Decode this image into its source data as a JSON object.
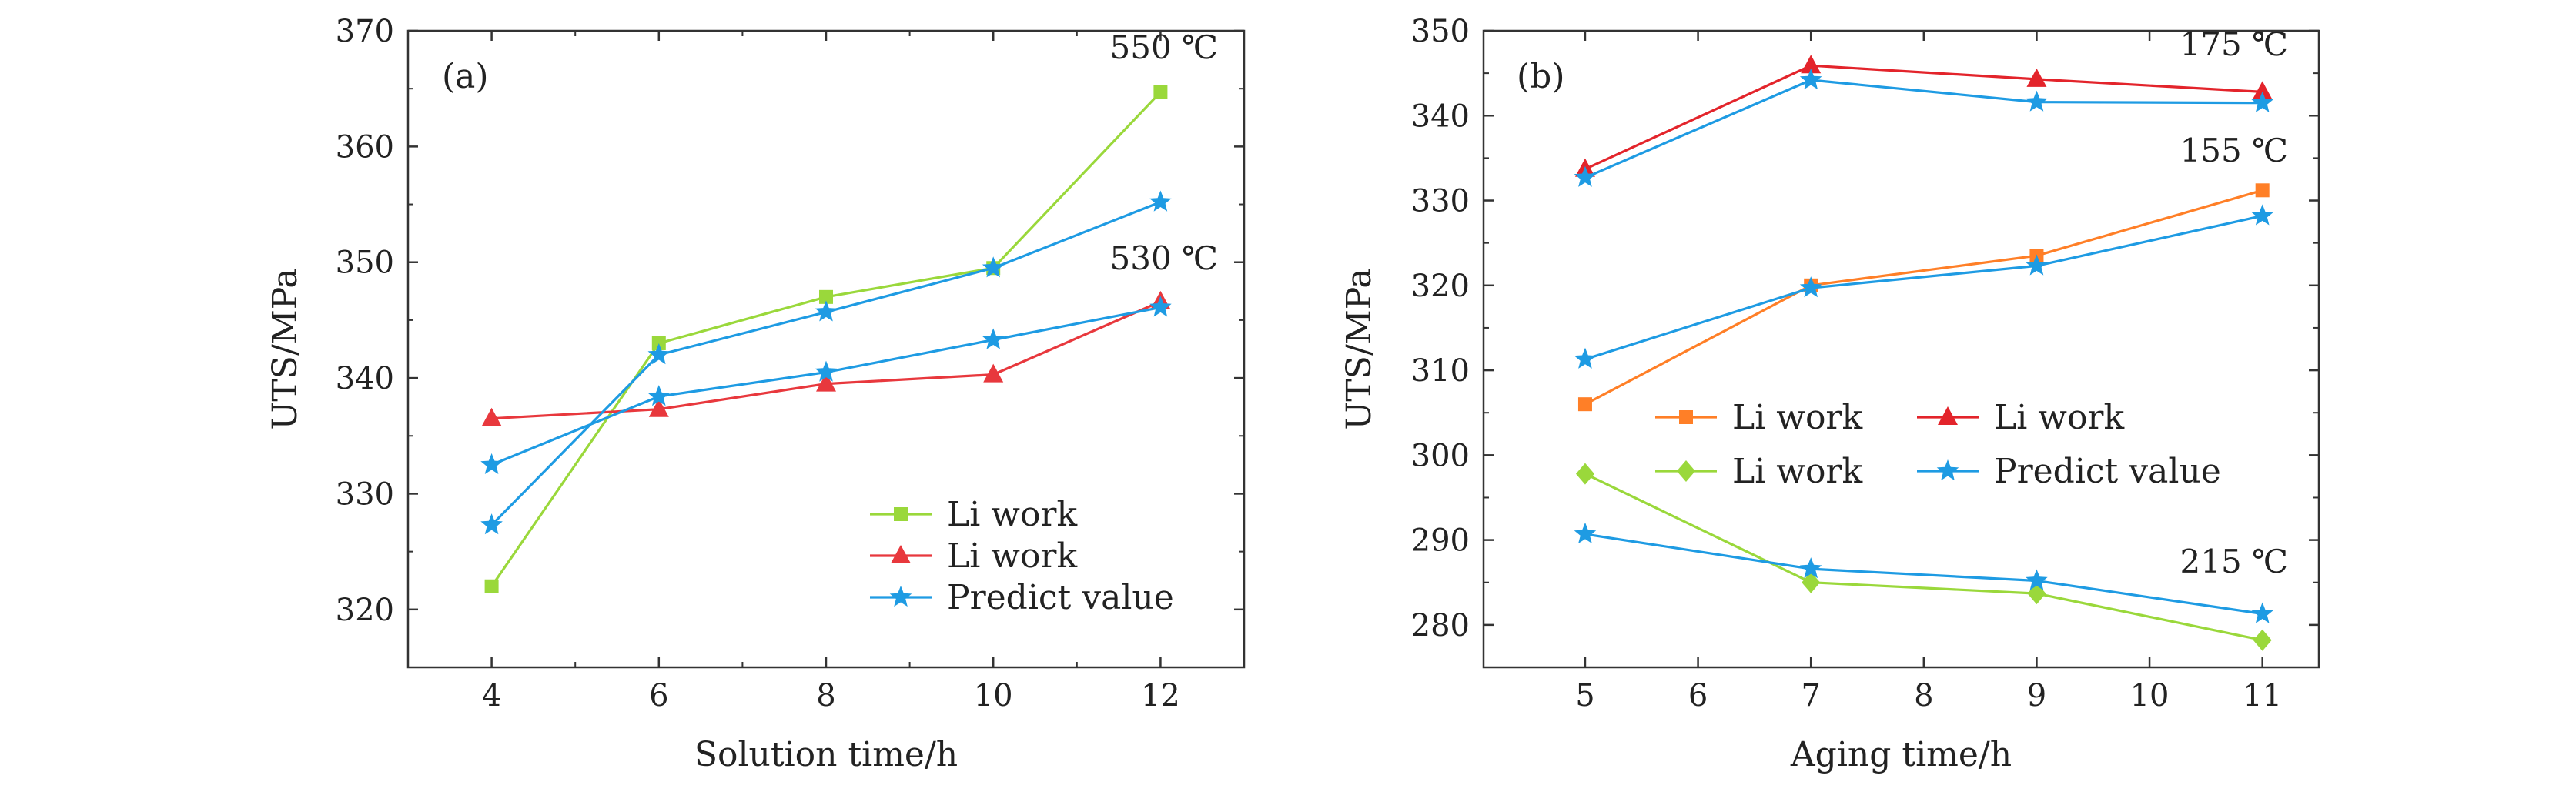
{
  "chart_data": [
    {
      "type": "line",
      "panel_label": "(a)",
      "xlabel": "Solution time/h",
      "ylabel": "UTS/MPa",
      "xlim": [
        3,
        13
      ],
      "ylim": [
        315,
        370
      ],
      "xticks": [
        4,
        6,
        8,
        10,
        12
      ],
      "yticks": [
        320,
        330,
        340,
        350,
        360,
        370
      ],
      "annotations": [
        {
          "text": "550 ℃",
          "x": 12,
          "y": 367
        },
        {
          "text": "530 ℃",
          "x": 12,
          "y": 350
        }
      ],
      "legend_position": "bottom-right",
      "series": [
        {
          "name": "Li work",
          "color": "#9ad83b",
          "marker": "square",
          "x": [
            4,
            6,
            8,
            10,
            12
          ],
          "values": [
            322.0,
            343.0,
            347.0,
            349.5,
            364.7
          ]
        },
        {
          "name": "Li work",
          "color": "#e8383d",
          "marker": "triangle",
          "x": [
            4,
            6,
            8,
            10,
            12
          ],
          "values": [
            336.5,
            337.3,
            339.5,
            340.3,
            346.6
          ]
        },
        {
          "name": "Predict value",
          "color": "#1e9be3",
          "marker": "star",
          "x": [
            4,
            6,
            8,
            10,
            12
          ],
          "values": [
            327.3,
            342.0,
            345.7,
            349.5,
            355.2
          ]
        },
        {
          "name": "",
          "color": "#1e9be3",
          "marker": "star",
          "x": [
            4,
            6,
            8,
            10,
            12
          ],
          "values": [
            332.5,
            338.4,
            340.5,
            343.3,
            346.1
          ]
        }
      ],
      "legend": [
        {
          "label": "Li work",
          "series": 0
        },
        {
          "label": "Li work",
          "series": 1
        },
        {
          "label": "Predict value",
          "series": 2
        }
      ]
    },
    {
      "type": "line",
      "panel_label": "(b)",
      "xlabel": "Aging time/h",
      "ylabel": "UTS/MPa",
      "xlim": [
        4.1,
        11.5
      ],
      "ylim": [
        275,
        350
      ],
      "xticks": [
        5,
        6,
        7,
        8,
        9,
        10,
        11
      ],
      "yticks": [
        280,
        290,
        300,
        310,
        320,
        330,
        340,
        350
      ],
      "annotations": [
        {
          "text": "175 ℃",
          "x": 11,
          "y": 347
        },
        {
          "text": "155 ℃",
          "x": 11,
          "y": 334
        },
        {
          "text": "215 ℃",
          "x": 11,
          "y": 285
        }
      ],
      "legend_position": "center",
      "series": [
        {
          "name": "Li work",
          "color": "#ff7f27",
          "marker": "square",
          "x": [
            5,
            7,
            9,
            11
          ],
          "values": [
            306.0,
            320.0,
            323.5,
            331.2
          ]
        },
        {
          "name": "Li work",
          "color": "#e3242b",
          "marker": "triangle",
          "x": [
            5,
            7,
            9,
            11
          ],
          "values": [
            333.7,
            345.9,
            344.3,
            342.8
          ]
        },
        {
          "name": "Li work",
          "color": "#9ad83b",
          "marker": "diamond",
          "x": [
            5,
            7,
            9,
            11
          ],
          "values": [
            297.8,
            285.0,
            283.7,
            278.2
          ]
        },
        {
          "name": "Predict value",
          "color": "#1e9be3",
          "marker": "star",
          "x": [
            5,
            7,
            9,
            11
          ],
          "values": [
            332.7,
            344.2,
            341.6,
            341.5
          ]
        },
        {
          "name": "",
          "color": "#1e9be3",
          "marker": "star",
          "x": [
            5,
            7,
            9,
            11
          ],
          "values": [
            311.3,
            319.7,
            322.3,
            328.2
          ]
        },
        {
          "name": "",
          "color": "#1e9be3",
          "marker": "star",
          "x": [
            5,
            7,
            9,
            11
          ],
          "values": [
            290.7,
            286.6,
            285.2,
            281.3
          ]
        }
      ],
      "legend": [
        {
          "label": "Li work",
          "series": 0
        },
        {
          "label": "Li work",
          "series": 1
        },
        {
          "label": "Li work",
          "series": 2
        },
        {
          "label": "Predict value",
          "series": 3
        }
      ]
    }
  ]
}
